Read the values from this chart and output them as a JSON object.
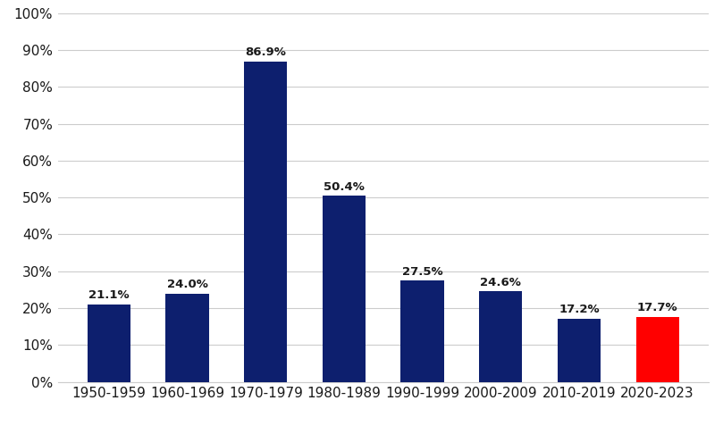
{
  "categories": [
    "1950-1959",
    "1960-1969",
    "1970-1979",
    "1980-1989",
    "1990-1999",
    "2000-2009",
    "2010-2019",
    "2020-2023"
  ],
  "values": [
    21.1,
    24.0,
    86.9,
    50.4,
    27.5,
    24.6,
    17.2,
    17.7
  ],
  "bar_colors": [
    "#0d1f6e",
    "#0d1f6e",
    "#0d1f6e",
    "#0d1f6e",
    "#0d1f6e",
    "#0d1f6e",
    "#0d1f6e",
    "#ff0000"
  ],
  "ylim": [
    0,
    100
  ],
  "yticks": [
    0,
    10,
    20,
    30,
    40,
    50,
    60,
    70,
    80,
    90,
    100
  ],
  "background_color": "#ffffff",
  "grid_color": "#cccccc",
  "tick_fontsize": 11,
  "annotation_fontsize": 9.5,
  "annotation_color": "#1a1a1a",
  "bar_width": 0.55
}
